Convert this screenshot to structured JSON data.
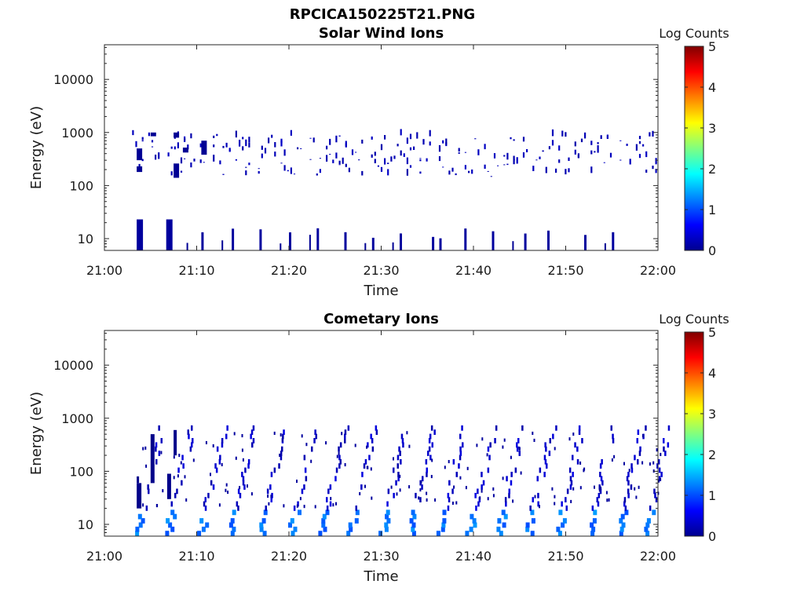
{
  "figure_title": "RPCICA150225T21.PNG",
  "chart_data": [
    {
      "type": "heatmap",
      "title": "Solar Wind Ions",
      "xlabel": "Time",
      "ylabel": "Energy (eV)",
      "x_ticks": [
        "21:00",
        "21:10",
        "21:20",
        "21:30",
        "21:40",
        "21:50",
        "22:00"
      ],
      "y_ticks": [
        "10",
        "100",
        "1000",
        "10000"
      ],
      "xlim": [
        "21:00",
        "22:00"
      ],
      "ylim": [
        6,
        45000
      ],
      "y_scale": "log",
      "colorbar": {
        "label": "Log Counts",
        "ticks": [
          "0",
          "1",
          "2",
          "3",
          "4",
          "5"
        ],
        "range": [
          0,
          5
        ],
        "colormap": "jet"
      },
      "grid": false,
      "approx_data": {
        "upper_band": {
          "time_range_min": [
            3,
            60
          ],
          "energy_range_eV": [
            100,
            1000
          ],
          "log_counts_typical": 0.2
        },
        "low_energy_columns_min": [
          3.5,
          6.7,
          10.5,
          13.8,
          16.8,
          20.0,
          23.0,
          26.0,
          29.0,
          32.0,
          35.5,
          36.3,
          39.0,
          42.0,
          45.5,
          48.0,
          52.0,
          55.0
        ],
        "low_energy_range_eV": [
          6,
          23
        ]
      }
    },
    {
      "type": "heatmap",
      "title": "Cometary Ions",
      "xlabel": "Time",
      "ylabel": "Energy (eV)",
      "x_ticks": [
        "21:00",
        "21:10",
        "21:20",
        "21:30",
        "21:40",
        "21:50",
        "22:00"
      ],
      "y_ticks": [
        "10",
        "100",
        "1000",
        "10000"
      ],
      "xlim": [
        "21:00",
        "22:00"
      ],
      "ylim": [
        6,
        45000
      ],
      "y_scale": "log",
      "colorbar": {
        "label": "Log Counts",
        "ticks": [
          "0",
          "1",
          "2",
          "3",
          "4",
          "5"
        ],
        "range": [
          0,
          5
        ],
        "colormap": "jet"
      },
      "grid": false,
      "approx_data": {
        "sweep_columns_min": [
          3.5,
          6.7,
          10.3,
          13.5,
          16.8,
          20.0,
          23.3,
          26.5,
          30.0,
          33.0,
          36.3,
          39.5,
          42.5,
          45.8,
          49.0,
          52.3,
          55.5,
          58.5
        ],
        "sweep_energy_range_eV": [
          6,
          700
        ],
        "log_counts_at_10eV": 1.0,
        "log_counts_above_30eV": 0.2
      }
    }
  ]
}
